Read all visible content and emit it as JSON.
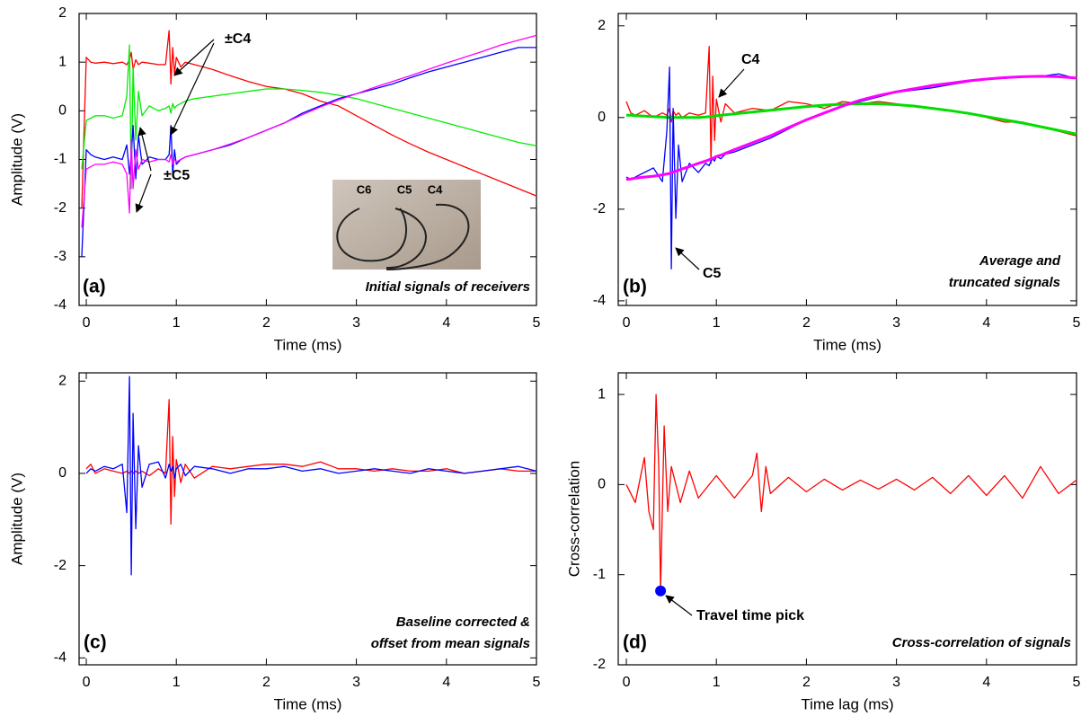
{
  "chart_data": [
    {
      "type": "line",
      "xlabel": "Time (ms)",
      "ylabel": "Amplitude (V)",
      "xlim": [
        -0.08,
        5
      ],
      "xticks": [
        0,
        1,
        2,
        3,
        4,
        5
      ],
      "ylim": [
        -4,
        2
      ],
      "yticks": [
        -4,
        -3,
        -2,
        -1,
        0,
        1,
        2
      ],
      "annotations": [
        "(a)",
        "Initial signals of receivers",
        "±C4",
        "±C5"
      ],
      "inset_labels": [
        "C6",
        "C5",
        "C4"
      ],
      "x": [
        -0.05,
        0,
        0.05,
        0.1,
        0.2,
        0.3,
        0.4,
        0.45,
        0.48,
        0.5,
        0.52,
        0.55,
        0.58,
        0.62,
        0.7,
        0.8,
        0.88,
        0.92,
        0.94,
        0.96,
        0.98,
        1.0,
        1.05,
        1.1,
        1.2,
        1.4,
        1.6,
        1.8,
        2.0,
        2.2,
        2.4,
        2.6,
        2.8,
        3.0,
        3.2,
        3.4,
        3.6,
        3.8,
        4.0,
        4.2,
        4.4,
        4.6,
        4.8,
        5.0
      ],
      "series": [
        {
          "color": "#ff0000",
          "values": [
            -2,
            1.1,
            1.0,
            0.98,
            1.0,
            0.97,
            1.0,
            0.95,
            1.05,
            1.2,
            0.85,
            1.05,
            0.95,
            1.0,
            0.98,
            0.95,
            0.95,
            1.65,
            0.55,
            1.3,
            0.75,
            1.1,
            0.9,
            1.0,
            0.95,
            0.85,
            0.72,
            0.6,
            0.5,
            0.45,
            0.35,
            0.2,
            0.1,
            -0.1,
            -0.3,
            -0.5,
            -0.68,
            -0.85,
            -1.0,
            -1.15,
            -1.3,
            -1.45,
            -1.6,
            -1.75
          ]
        },
        {
          "color": "#00ee00",
          "values": [
            -1.2,
            -0.2,
            -0.15,
            -0.1,
            -0.1,
            -0.15,
            -0.1,
            0.3,
            1.35,
            -1.6,
            0.9,
            -0.6,
            0.4,
            -0.1,
            0.1,
            0.0,
            0.05,
            0.1,
            -0.05,
            0.15,
            0.05,
            0.1,
            0.15,
            0.2,
            0.25,
            0.3,
            0.35,
            0.4,
            0.45,
            0.45,
            0.42,
            0.38,
            0.32,
            0.25,
            0.15,
            0.05,
            -0.05,
            -0.15,
            -0.25,
            -0.35,
            -0.45,
            -0.55,
            -0.65,
            -0.72
          ]
        },
        {
          "color": "#0000ff",
          "values": [
            -3,
            -0.8,
            -0.9,
            -0.95,
            -1.0,
            -0.95,
            -1.0,
            -0.7,
            -1.3,
            -0.9,
            -0.3,
            -1.4,
            -0.5,
            -1.1,
            -0.95,
            -1.0,
            -1.0,
            -0.9,
            -0.3,
            -1.3,
            -0.8,
            -1.1,
            -1.0,
            -0.95,
            -0.9,
            -0.8,
            -0.7,
            -0.55,
            -0.4,
            -0.25,
            -0.05,
            0.1,
            0.25,
            0.35,
            0.45,
            0.55,
            0.68,
            0.8,
            0.9,
            1.0,
            1.1,
            1.2,
            1.3,
            1.3
          ]
        },
        {
          "color": "#ff00ff",
          "values": [
            -2.4,
            -1.2,
            -1.15,
            -1.1,
            -1.1,
            -1.05,
            -1.1,
            -1.3,
            -2.1,
            -0.6,
            -1.6,
            -0.8,
            -1.2,
            -1.0,
            -1.05,
            -1.0,
            -1.0,
            -1.05,
            -0.9,
            -1.1,
            -1.0,
            -1.05,
            -1.0,
            -0.95,
            -0.9,
            -0.8,
            -0.68,
            -0.55,
            -0.4,
            -0.25,
            -0.08,
            0.08,
            0.22,
            0.35,
            0.48,
            0.6,
            0.72,
            0.85,
            0.98,
            1.1,
            1.22,
            1.35,
            1.45,
            1.55
          ]
        }
      ]
    },
    {
      "type": "line",
      "xlabel": "Time (ms)",
      "xlim": [
        -0.09,
        5
      ],
      "xticks": [
        0,
        1,
        2,
        3,
        4,
        5
      ],
      "ylim": [
        -4.1,
        2.27
      ],
      "yticks": [
        -4,
        -2,
        0,
        2
      ],
      "annotations": [
        "(b)",
        "Average and",
        "truncated signals",
        "C4",
        "C5"
      ],
      "x": [
        0,
        0.05,
        0.1,
        0.2,
        0.3,
        0.4,
        0.45,
        0.48,
        0.5,
        0.52,
        0.55,
        0.58,
        0.62,
        0.7,
        0.8,
        0.88,
        0.92,
        0.94,
        0.96,
        0.98,
        1.0,
        1.05,
        1.1,
        1.2,
        1.4,
        1.6,
        1.8,
        2.0,
        2.2,
        2.4,
        2.6,
        2.8,
        3.0,
        3.2,
        3.4,
        3.6,
        3.8,
        4.0,
        4.2,
        4.4,
        4.6,
        4.8,
        5.0
      ],
      "series": [
        {
          "color": "#ff0000",
          "width": 1.3,
          "values": [
            0.35,
            0.1,
            0.05,
            0.15,
            0.0,
            0.1,
            0.05,
            0.2,
            -0.1,
            0.15,
            0.05,
            0.1,
            0.0,
            0.1,
            0.05,
            0.1,
            1.55,
            -1.0,
            0.9,
            -0.5,
            0.4,
            -0.1,
            0.3,
            0.1,
            0.2,
            0.15,
            0.35,
            0.3,
            0.2,
            0.35,
            0.3,
            0.35,
            0.3,
            0.25,
            0.2,
            0.15,
            0.1,
            0.0,
            -0.1,
            -0.1,
            -0.2,
            -0.3,
            -0.4
          ]
        },
        {
          "color": "#00dd00",
          "width": 3,
          "values": [
            0.05,
            0.05,
            0.04,
            0.03,
            0.02,
            0.01,
            0.0,
            0.0,
            0.0,
            0.0,
            0.0,
            0.0,
            0.0,
            0.0,
            0.0,
            0.01,
            0.02,
            0.02,
            0.03,
            0.03,
            0.04,
            0.05,
            0.06,
            0.08,
            0.12,
            0.16,
            0.2,
            0.24,
            0.27,
            0.29,
            0.3,
            0.3,
            0.28,
            0.25,
            0.2,
            0.15,
            0.09,
            0.02,
            -0.05,
            -0.12,
            -0.2,
            -0.28,
            -0.36
          ]
        },
        {
          "color": "#0000ff",
          "width": 1.3,
          "values": [
            -1.3,
            -1.35,
            -1.3,
            -1.2,
            -1.1,
            -1.4,
            -0.3,
            1.1,
            -3.3,
            0.2,
            -2.2,
            -0.6,
            -1.4,
            -1.0,
            -1.2,
            -1.0,
            -1.05,
            -0.95,
            -0.9,
            -0.95,
            -0.85,
            -0.9,
            -0.8,
            -0.75,
            -0.6,
            -0.45,
            -0.25,
            -0.05,
            0.1,
            0.25,
            0.35,
            0.45,
            0.55,
            0.6,
            0.65,
            0.72,
            0.78,
            0.85,
            0.85,
            0.9,
            0.9,
            0.95,
            0.85
          ]
        },
        {
          "color": "#ff00ff",
          "width": 3,
          "values": [
            -1.35,
            -1.34,
            -1.32,
            -1.3,
            -1.28,
            -1.25,
            -1.23,
            -1.22,
            -1.2,
            -1.19,
            -1.17,
            -1.15,
            -1.12,
            -1.07,
            -1.0,
            -0.95,
            -0.92,
            -0.9,
            -0.89,
            -0.87,
            -0.85,
            -0.82,
            -0.78,
            -0.7,
            -0.55,
            -0.4,
            -0.22,
            -0.05,
            0.1,
            0.25,
            0.38,
            0.48,
            0.56,
            0.63,
            0.7,
            0.75,
            0.8,
            0.84,
            0.87,
            0.89,
            0.9,
            0.89,
            0.86
          ]
        }
      ]
    },
    {
      "type": "line",
      "xlabel": "Time (ms)",
      "ylabel": "Amplitude (V)",
      "xlim": [
        -0.08,
        5
      ],
      "xticks": [
        0,
        1,
        2,
        3,
        4,
        5
      ],
      "ylim": [
        -4.15,
        2.18
      ],
      "yticks": [
        -4,
        -2,
        0,
        2
      ],
      "annotations": [
        "(c)",
        "Baseline corrected &",
        "offset from mean signals"
      ],
      "x": [
        0,
        0.05,
        0.1,
        0.2,
        0.3,
        0.4,
        0.45,
        0.48,
        0.5,
        0.52,
        0.55,
        0.58,
        0.62,
        0.7,
        0.8,
        0.88,
        0.92,
        0.94,
        0.96,
        0.98,
        1.0,
        1.05,
        1.1,
        1.2,
        1.4,
        1.6,
        1.8,
        2.0,
        2.2,
        2.4,
        2.6,
        2.8,
        3.0,
        3.2,
        3.4,
        3.6,
        3.8,
        4.0,
        4.2,
        4.4,
        4.6,
        4.8,
        5.0
      ],
      "series": [
        {
          "color": "#ff0000",
          "values": [
            0.1,
            0.2,
            0.0,
            0.1,
            0.05,
            0.0,
            0.05,
            0.0,
            0.05,
            0.0,
            0.05,
            0.0,
            0.05,
            -0.05,
            0.1,
            0.0,
            1.6,
            -1.1,
            0.8,
            -0.5,
            0.3,
            -0.2,
            0.2,
            -0.1,
            0.15,
            0.1,
            0.15,
            0.2,
            0.2,
            0.15,
            0.25,
            0.1,
            0.1,
            0.05,
            0.1,
            0.05,
            0.05,
            0.1,
            0.0,
            0.05,
            0.1,
            0.05,
            0.05
          ]
        },
        {
          "color": "#0000ff",
          "values": [
            0.0,
            0.1,
            0.05,
            0.15,
            0.1,
            0.2,
            -0.85,
            2.1,
            -2.2,
            1.3,
            -1.2,
            0.6,
            -0.3,
            0.2,
            0.25,
            -0.1,
            0.2,
            0.05,
            0.15,
            -0.1,
            0.1,
            0.2,
            -0.05,
            0.15,
            0.1,
            0.0,
            0.1,
            0.1,
            0.15,
            0.05,
            0.1,
            0.0,
            0.05,
            0.1,
            0.05,
            0.0,
            0.1,
            0.05,
            0.0,
            0.05,
            0.1,
            0.15,
            0.05
          ]
        }
      ]
    },
    {
      "type": "line",
      "xlabel": "Time lag (ms)",
      "ylabel": "Cross-correlation",
      "xlim": [
        -0.09,
        5
      ],
      "xticks": [
        0,
        1,
        2,
        3,
        4,
        5
      ],
      "ylim": [
        -2,
        1.24
      ],
      "yticks": [
        -2,
        -1,
        0,
        1
      ],
      "annotations": [
        "(d)",
        "Cross-correlation of signals",
        "Travel time pick"
      ],
      "x": [
        0,
        0.1,
        0.2,
        0.25,
        0.3,
        0.33,
        0.36,
        0.38,
        0.42,
        0.46,
        0.5,
        0.6,
        0.7,
        0.8,
        1.0,
        1.2,
        1.4,
        1.45,
        1.5,
        1.55,
        1.6,
        1.8,
        2.0,
        2.2,
        2.4,
        2.6,
        2.8,
        3.0,
        3.2,
        3.4,
        3.6,
        3.8,
        4.0,
        4.2,
        4.4,
        4.6,
        4.8,
        5.0
      ],
      "series": [
        {
          "color": "#ff0000",
          "values": [
            0.0,
            -0.2,
            0.3,
            -0.3,
            -0.5,
            1.0,
            0.2,
            -1.18,
            0.65,
            -0.3,
            0.2,
            -0.2,
            0.15,
            -0.15,
            0.1,
            -0.15,
            0.1,
            0.35,
            -0.3,
            0.2,
            -0.1,
            0.08,
            -0.08,
            0.06,
            -0.06,
            0.05,
            -0.05,
            0.06,
            -0.06,
            0.08,
            -0.1,
            0.1,
            -0.12,
            0.1,
            -0.15,
            0.2,
            -0.1,
            0.05
          ]
        }
      ],
      "pick": {
        "x": 0.38,
        "y": -1.18,
        "color": "#0000ff"
      }
    }
  ]
}
